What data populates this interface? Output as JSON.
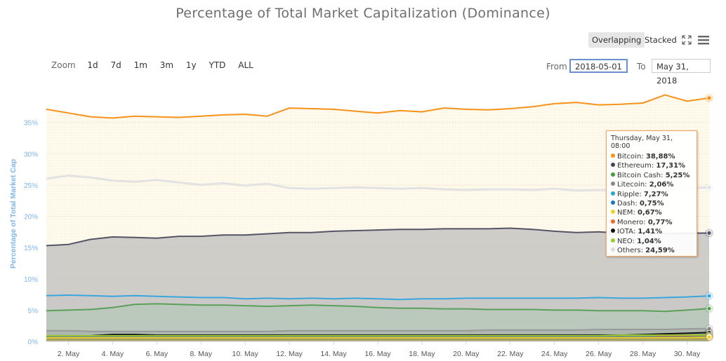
{
  "title": "Percentage of Total Market Capitalization (Dominance)",
  "controls": {
    "overlapping_label": "Overlapping",
    "stacked_label": "Stacked",
    "zoom_label": "Zoom",
    "zoom_buttons": [
      "1d",
      "7d",
      "1m",
      "3m",
      "1y",
      "YTD",
      "ALL"
    ],
    "from_label": "From",
    "from_value": "2018-05-01",
    "to_label": "To",
    "to_value": "May 31, 2018",
    "icons": [
      "fullscreen-icon",
      "menu-icon"
    ]
  },
  "tooltip": {
    "header": "Thursday, May 31, 08:00",
    "rows": [
      {
        "name": "Bitcoin",
        "value": "38,88%",
        "color": "#f7931a"
      },
      {
        "name": "Ethereum",
        "value": "17,31%",
        "color": "#444455"
      },
      {
        "name": "Bitcoin Cash",
        "value": "5,25%",
        "color": "#4c9a3f"
      },
      {
        "name": "Litecoin",
        "value": "2,06%",
        "color": "#888888"
      },
      {
        "name": "Ripple",
        "value": "7,27%",
        "color": "#2fa4d9"
      },
      {
        "name": "Dash",
        "value": "0,75%",
        "color": "#1c75bc"
      },
      {
        "name": "NEM",
        "value": "0,67%",
        "color": "#f5d020"
      },
      {
        "name": "Monero",
        "value": "0,77%",
        "color": "#f26822"
      },
      {
        "name": "IOTA",
        "value": "1,41%",
        "color": "#111111"
      },
      {
        "name": "NEO",
        "value": "1,04%",
        "color": "#9acd32"
      },
      {
        "name": "Others",
        "value": "24,59%",
        "color": "#dddddd"
      }
    ]
  },
  "chart_data": {
    "type": "area",
    "title": "Percentage of Total Market Capitalization (Dominance)",
    "ylabel": "Percentage of Total Market Cap",
    "ylim": [
      0,
      40
    ],
    "yticks": [
      "0%",
      "5%",
      "10%",
      "15%",
      "20%",
      "25%",
      "30%",
      "35%"
    ],
    "xlabels": [
      "2. May",
      "4. May",
      "6. May",
      "8. May",
      "10. May",
      "12. May",
      "14. May",
      "16. May",
      "18. May",
      "20. May",
      "22. May",
      "24. May",
      "26. May",
      "28. May",
      "30. May"
    ],
    "x": [
      1,
      2,
      3,
      4,
      5,
      6,
      7,
      8,
      9,
      10,
      11,
      12,
      13,
      14,
      15,
      16,
      17,
      18,
      19,
      20,
      21,
      22,
      23,
      24,
      25,
      26,
      27,
      28,
      29,
      30,
      31
    ],
    "grid": true,
    "legend": "none",
    "series": [
      {
        "name": "Bitcoin",
        "color": "#f7931a",
        "fill": "rgba(247,200,100,0.22)",
        "values": [
          37.1,
          36.5,
          35.9,
          35.7,
          36.0,
          35.9,
          35.8,
          36.0,
          36.2,
          36.3,
          36.0,
          37.3,
          37.2,
          37.1,
          36.8,
          36.5,
          36.9,
          36.7,
          37.3,
          37.1,
          37.0,
          37.2,
          37.5,
          38.0,
          38.2,
          37.8,
          37.9,
          38.1,
          39.4,
          38.4,
          38.9
        ]
      },
      {
        "name": "Others",
        "color": "#e2e2e2",
        "fill": "rgba(240,240,240,0.0)",
        "values": [
          26.0,
          26.5,
          26.2,
          25.7,
          25.5,
          25.8,
          25.4,
          25.0,
          25.3,
          24.9,
          25.2,
          24.5,
          24.4,
          24.5,
          24.6,
          24.5,
          24.4,
          24.5,
          24.3,
          24.2,
          24.3,
          24.3,
          24.2,
          24.4,
          24.1,
          24.2,
          24.1,
          24.3,
          24.1,
          24.5,
          24.59
        ]
      },
      {
        "name": "Ethereum",
        "color": "#555566",
        "fill": "rgba(190,190,190,0.75)",
        "values": [
          15.3,
          15.5,
          16.3,
          16.7,
          16.6,
          16.5,
          16.8,
          16.8,
          17.0,
          17.0,
          17.2,
          17.4,
          17.4,
          17.6,
          17.7,
          17.8,
          17.9,
          17.9,
          18.0,
          18.0,
          18.0,
          18.1,
          17.9,
          17.6,
          17.4,
          17.5,
          17.3,
          17.4,
          17.2,
          17.3,
          17.31
        ]
      },
      {
        "name": "Ripple",
        "color": "#3aa6de",
        "fill": "rgba(190,190,190,0.25)",
        "values": [
          7.3,
          7.4,
          7.3,
          7.2,
          7.3,
          7.2,
          7.1,
          7.0,
          7.0,
          6.8,
          6.9,
          6.8,
          6.9,
          6.8,
          6.9,
          6.8,
          6.7,
          6.8,
          6.8,
          6.9,
          6.9,
          6.9,
          6.9,
          6.9,
          6.9,
          7.0,
          6.9,
          6.9,
          7.0,
          7.1,
          7.27
        ]
      },
      {
        "name": "Bitcoin Cash",
        "color": "#5aa05a",
        "fill": "rgba(160,200,170,0.35)",
        "values": [
          4.9,
          5.0,
          5.1,
          5.4,
          5.9,
          6.0,
          5.9,
          5.8,
          5.8,
          5.7,
          5.6,
          5.7,
          5.8,
          5.7,
          5.6,
          5.4,
          5.3,
          5.3,
          5.2,
          5.2,
          5.1,
          5.1,
          5.1,
          5.0,
          5.0,
          4.9,
          4.9,
          4.9,
          4.8,
          5.0,
          5.25
        ]
      },
      {
        "name": "Litecoin",
        "color": "#999999",
        "fill": "rgba(150,150,150,0.35)",
        "values": [
          1.7,
          1.7,
          1.6,
          1.6,
          1.6,
          1.6,
          1.6,
          1.6,
          1.6,
          1.6,
          1.6,
          1.7,
          1.7,
          1.7,
          1.7,
          1.7,
          1.7,
          1.7,
          1.7,
          1.7,
          1.8,
          1.8,
          1.8,
          1.8,
          1.8,
          1.9,
          1.9,
          1.9,
          1.9,
          2.0,
          2.06
        ]
      },
      {
        "name": "IOTA",
        "color": "#111111",
        "fill": "rgba(60,60,60,0.25)",
        "values": [
          0.8,
          0.8,
          0.9,
          1.1,
          1.1,
          1.0,
          1.0,
          1.0,
          1.0,
          1.0,
          1.0,
          1.0,
          1.0,
          1.0,
          1.0,
          1.0,
          1.0,
          1.0,
          1.0,
          1.0,
          1.0,
          1.0,
          1.0,
          1.0,
          1.0,
          1.0,
          1.0,
          1.1,
          1.2,
          1.3,
          1.41
        ]
      },
      {
        "name": "NEO",
        "color": "#9acd32",
        "fill": "rgba(154,205,50,0.25)",
        "values": [
          0.9,
          0.9,
          0.9,
          0.9,
          0.9,
          0.9,
          0.9,
          0.9,
          0.9,
          0.9,
          0.9,
          0.9,
          0.9,
          0.9,
          0.9,
          0.9,
          0.9,
          0.9,
          0.9,
          0.9,
          0.9,
          0.9,
          0.9,
          0.9,
          0.9,
          0.9,
          1.0,
          1.0,
          1.0,
          1.0,
          1.04
        ]
      },
      {
        "name": "Monero",
        "color": "#f26822",
        "fill": "rgba(242,104,34,0.15)",
        "values": [
          0.7,
          0.7,
          0.7,
          0.7,
          0.7,
          0.7,
          0.7,
          0.7,
          0.7,
          0.7,
          0.7,
          0.7,
          0.7,
          0.7,
          0.7,
          0.7,
          0.7,
          0.7,
          0.7,
          0.7,
          0.7,
          0.7,
          0.7,
          0.7,
          0.7,
          0.7,
          0.7,
          0.7,
          0.8,
          0.8,
          0.77
        ]
      },
      {
        "name": "Dash",
        "color": "#1c75bc",
        "fill": "rgba(28,117,188,0.15)",
        "values": [
          0.7,
          0.7,
          0.7,
          0.7,
          0.7,
          0.7,
          0.7,
          0.7,
          0.7,
          0.7,
          0.7,
          0.7,
          0.7,
          0.7,
          0.7,
          0.7,
          0.7,
          0.7,
          0.7,
          0.7,
          0.7,
          0.7,
          0.7,
          0.7,
          0.7,
          0.7,
          0.7,
          0.7,
          0.7,
          0.7,
          0.75
        ]
      },
      {
        "name": "NEM",
        "color": "#f5d020",
        "fill": "rgba(245,208,32,0.25)",
        "values": [
          0.6,
          0.6,
          0.6,
          0.6,
          0.6,
          0.6,
          0.6,
          0.6,
          0.6,
          0.6,
          0.6,
          0.6,
          0.6,
          0.6,
          0.6,
          0.6,
          0.6,
          0.6,
          0.6,
          0.6,
          0.6,
          0.6,
          0.6,
          0.6,
          0.6,
          0.6,
          0.6,
          0.6,
          0.6,
          0.6,
          0.67
        ]
      }
    ]
  }
}
